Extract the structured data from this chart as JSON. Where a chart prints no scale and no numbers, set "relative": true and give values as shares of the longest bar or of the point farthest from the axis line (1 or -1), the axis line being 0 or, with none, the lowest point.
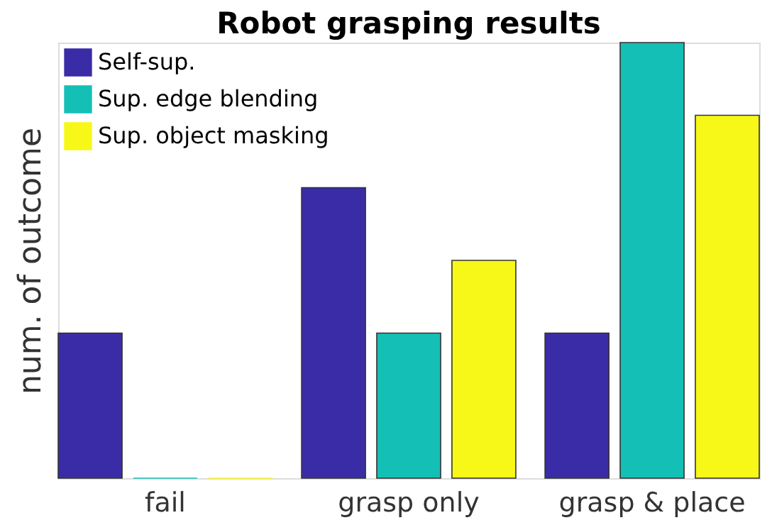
{
  "chart_data": {
    "type": "bar",
    "title": "Robot grasping results",
    "ylabel": "num. of outcome",
    "categories": [
      "fail",
      "grasp only",
      "grasp & place"
    ],
    "relative": true,
    "legend": "top left",
    "series": [
      {
        "name": "Self-sup.",
        "color": "#3a2ca6",
        "values": [
          0.333,
          0.667,
          0.333
        ]
      },
      {
        "name": "Sup. edge blending",
        "color": "#14bfb6",
        "values": [
          0,
          0.333,
          1
        ]
      },
      {
        "name": "Sup. object masking",
        "color": "#f8f818",
        "values": [
          0,
          0.5,
          0.833
        ]
      }
    ]
  }
}
